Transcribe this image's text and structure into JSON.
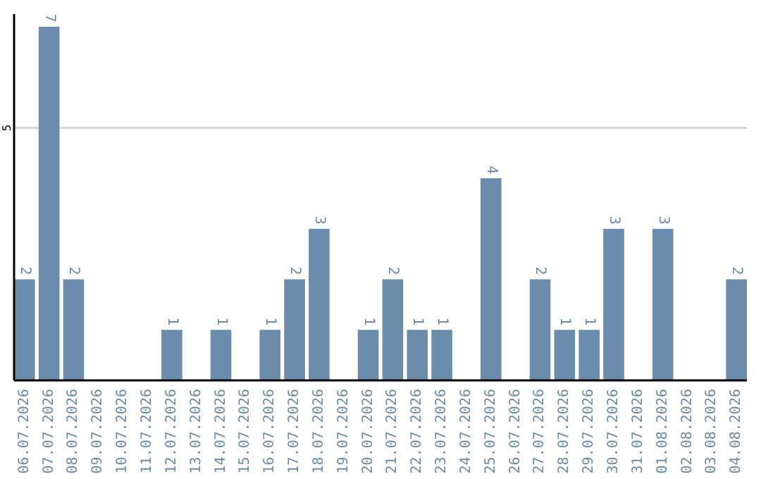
{
  "chart_data": {
    "type": "bar",
    "categories": [
      "06.07.2026",
      "07.07.2026",
      "08.07.2026",
      "09.07.2026",
      "10.07.2026",
      "11.07.2026",
      "12.07.2026",
      "13.07.2026",
      "14.07.2026",
      "15.07.2026",
      "16.07.2026",
      "17.07.2026",
      "18.07.2026",
      "19.07.2026",
      "20.07.2026",
      "21.07.2026",
      "22.07.2026",
      "23.07.2026",
      "24.07.2026",
      "25.07.2026",
      "26.07.2026",
      "27.07.2026",
      "28.07.2026",
      "29.07.2026",
      "30.07.2026",
      "31.07.2026",
      "01.08.2026",
      "02.08.2026",
      "03.08.2026",
      "04.08.2026"
    ],
    "values": [
      2,
      7,
      2,
      0,
      0,
      0,
      1,
      0,
      1,
      0,
      1,
      2,
      3,
      0,
      1,
      2,
      1,
      1,
      0,
      4,
      0,
      2,
      1,
      1,
      3,
      0,
      3,
      0,
      0,
      2
    ],
    "value_labels": [
      "2",
      "7",
      "2",
      null,
      null,
      null,
      "1",
      null,
      "1",
      null,
      "1",
      "2",
      "3",
      null,
      "1",
      "2",
      "1",
      "1",
      null,
      "4",
      null,
      "2",
      "1",
      "1",
      "3",
      null,
      "3",
      null,
      null,
      "2"
    ],
    "color": "#6b8cab",
    "ylim": [
      0,
      7.25
    ],
    "yticks": [
      5
    ],
    "grid": "y"
  }
}
